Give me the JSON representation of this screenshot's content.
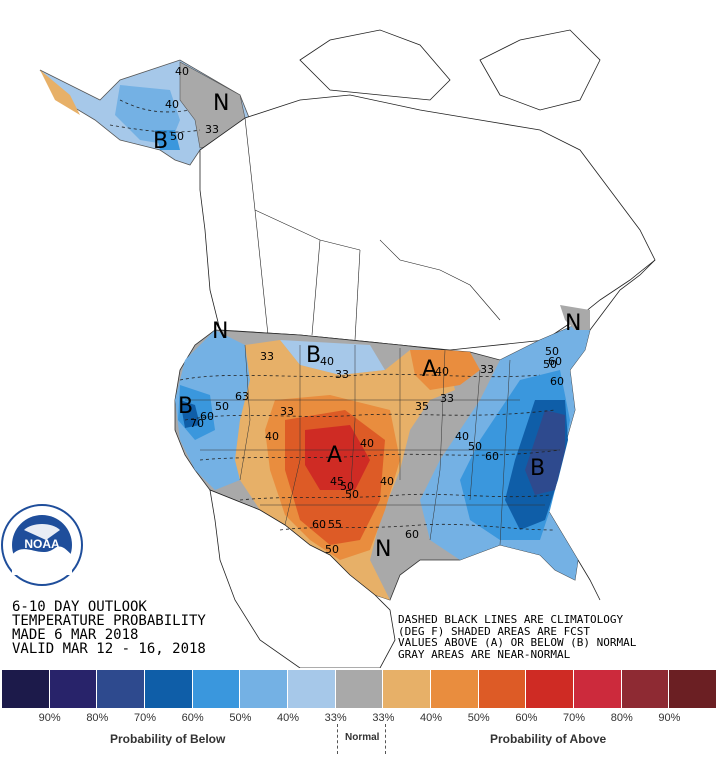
{
  "title": {
    "line1": "6-10 DAY OUTLOOK",
    "line2": "TEMPERATURE PROBABILITY",
    "line3": "MADE  6 MAR 2018",
    "line4": "VALID  MAR 12 - 16, 2018"
  },
  "notes": {
    "line1": "DASHED BLACK LINES ARE CLIMATOLOGY",
    "line2": "(DEG F) SHADED AREAS ARE FCST",
    "line3": "VALUES ABOVE (A) OR BELOW (B) NORMAL",
    "line4": "GRAY AREAS ARE NEAR-NORMAL"
  },
  "logo": {
    "text": "NOAA",
    "ring_text": "NATIONAL OCEANIC AND ATMOSPHERIC ADMINISTRATION · U.S. DEPARTMENT OF COMMERCE"
  },
  "map_labels": {
    "below_letter": "B",
    "above_letter": "A",
    "normal_letter": "N"
  },
  "contour_numbers": [
    "40",
    "50",
    "33",
    "33",
    "40",
    "50",
    "60",
    "70",
    "40",
    "33",
    "33",
    "40",
    "50",
    "60",
    "33",
    "40",
    "50",
    "60",
    "33",
    "40",
    "45",
    "50",
    "60",
    "55",
    "50",
    "40",
    "35",
    "60",
    "50",
    "40",
    "63",
    "50",
    "60"
  ],
  "legend": {
    "colors": [
      "#1c1a4a",
      "#28236a",
      "#2e4a8e",
      "#0f5ea8",
      "#3a97dd",
      "#74b1e4",
      "#a6c8e9",
      "#a9a9a9",
      "#e7b068",
      "#e98d3e",
      "#dd5b26",
      "#cf2b24",
      "#cc2a3c",
      "#8e2a33",
      "#6b1f23"
    ],
    "ticks": [
      "90%",
      "80%",
      "70%",
      "60%",
      "50%",
      "40%",
      "33%",
      "33%",
      "40%",
      "50%",
      "60%",
      "70%",
      "80%",
      "90%"
    ],
    "caption_below": "Probability of Below",
    "caption_normal": "Normal",
    "caption_above": "Probability of Above"
  }
}
